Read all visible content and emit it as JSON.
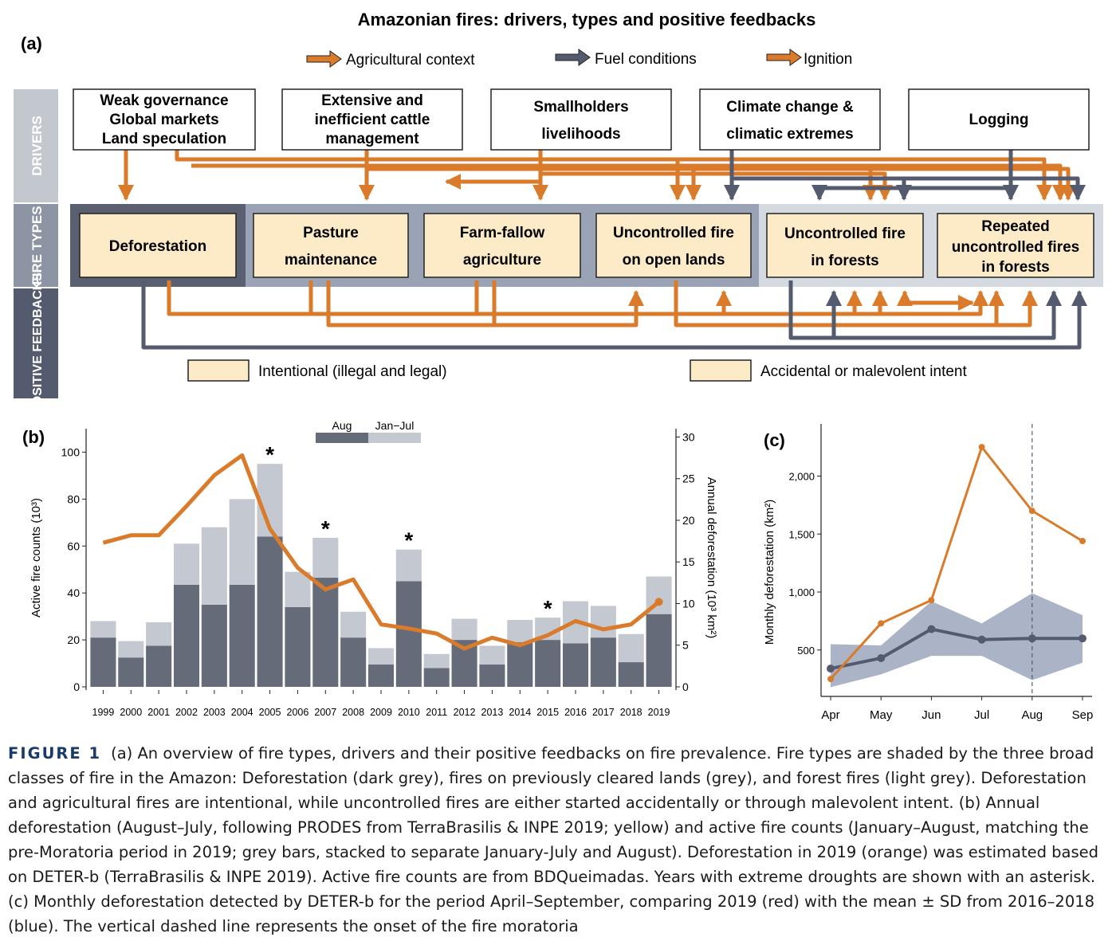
{
  "panel_a": {
    "label": "(a)",
    "title": "Amazonian fires: drivers, types and positive feedbacks",
    "legend": [
      {
        "name": "Agricultural context",
        "color": "#d97b2b"
      },
      {
        "name": "Fuel conditions",
        "color": "#555b6e"
      },
      {
        "name": "Ignition",
        "color": "#d97b2b"
      }
    ],
    "sidebar": [
      "DRIVERS",
      "FIRE TYPES",
      "POSITIVE FEEDBACKS"
    ],
    "drivers": [
      [
        "Weak governance",
        "Global markets",
        "Land speculation"
      ],
      [
        "Extensive and",
        "inefficient cattle",
        "management"
      ],
      [
        "Smallholders",
        "livelihoods"
      ],
      [
        "Climate change &",
        "climatic extremes"
      ],
      [
        "Logging"
      ]
    ],
    "fire_types": [
      [
        "Deforestation"
      ],
      [
        "Pasture",
        "maintenance"
      ],
      [
        "Farm-fallow",
        "agriculture"
      ],
      [
        "Uncontrolled fire",
        "on open lands"
      ],
      [
        "Uncontrolled fire",
        "in forests"
      ],
      [
        "Repeated",
        "uncontrolled fires",
        "in forests"
      ]
    ],
    "intent_legend": [
      "Intentional (illegal and legal)",
      "Accidental or malevolent intent"
    ],
    "colors": {
      "orange": "#d97b2b",
      "slate": "#555b6e",
      "cream": "#fdebc8",
      "dark_band": "#5a6070",
      "mid_band": "#9aa3b5",
      "light_band": "#d5d9e0"
    }
  },
  "chart_data": [
    {
      "type": "bar",
      "label": "(b)",
      "ylabel": "Active fire counts (10³)",
      "y2label": "Annual deforestation (10³ km²)",
      "ylim": [
        0,
        110
      ],
      "y2lim": [
        0,
        31
      ],
      "yticks": [
        0,
        20,
        40,
        60,
        80,
        100
      ],
      "y2ticks": [
        0,
        5,
        10,
        15,
        20,
        25,
        30
      ],
      "categories": [
        "1999",
        "2000",
        "2001",
        "2002",
        "2003",
        "2004",
        "2005",
        "2006",
        "2007",
        "2008",
        "2009",
        "2010",
        "2011",
        "2012",
        "2013",
        "2014",
        "2015",
        "2016",
        "2017",
        "2018",
        "2019"
      ],
      "series": [
        {
          "name": "Aug",
          "color": "#666b7a",
          "values": [
            21,
            12.5,
            17.5,
            43.5,
            35,
            43.5,
            64,
            34,
            46.5,
            21,
            9.5,
            45,
            8,
            20,
            9.5,
            19,
            20,
            18.5,
            21,
            10.5,
            31
          ]
        },
        {
          "name": "Jan−Jul",
          "color": "#c4c8d0",
          "values": [
            7,
            7,
            10,
            17.5,
            33,
            36.5,
            31,
            15,
            17,
            11,
            7,
            13.5,
            6,
            9,
            8,
            9.5,
            9.5,
            18,
            13.5,
            12,
            16
          ]
        },
        {
          "name": "Annual deforestation",
          "color": "#d97b2b",
          "values": [
            17.3,
            18.2,
            18.2,
            21.7,
            25.4,
            27.8,
            19.0,
            14.3,
            11.7,
            12.9,
            7.5,
            7.0,
            6.4,
            4.6,
            5.9,
            5.0,
            6.2,
            7.9,
            6.9,
            7.5,
            10.2
          ]
        }
      ],
      "drought_markers": [
        "2005",
        "2007",
        "2010",
        "2015"
      ],
      "marker_text": "*",
      "legend_position": "top-center"
    },
    {
      "type": "line",
      "label": "(c)",
      "ylabel": "Monthly deforestation (km²)",
      "ylim": [
        100,
        2450
      ],
      "yticks": [
        500,
        1000,
        1500,
        2000
      ],
      "ytick_labels": [
        "500",
        "1,000",
        "1,500",
        "2,000"
      ],
      "categories": [
        "Apr",
        "May",
        "Jun",
        "Jul",
        "Aug",
        "Sep"
      ],
      "series": [
        {
          "name": "2019",
          "color": "#d97b2b",
          "values": [
            250,
            730,
            930,
            2250,
            1700,
            1440
          ]
        },
        {
          "name": "mean 2016–2018",
          "color": "#555b6e",
          "values": [
            340,
            430,
            680,
            590,
            600,
            600
          ],
          "sd_low": [
            180,
            290,
            450,
            450,
            240,
            390
          ],
          "sd_high": [
            550,
            540,
            920,
            730,
            990,
            800
          ]
        }
      ],
      "vline_category": "Aug"
    }
  ],
  "caption": {
    "label": "FIGURE 1",
    "text": "(a) An overview of fire types, drivers and their positive feedbacks on fire prevalence. Fire types are shaded by the three broad classes of fire in the Amazon: Deforestation (dark grey), fires on previously cleared lands (grey), and forest fires (light grey). Deforestation and agricultural fires are intentional, while uncontrolled fires are either started accidentally or through malevolent intent. (b) Annual deforestation (August–July, following PRODES from TerraBrasilis & INPE 2019; yellow) and active fire counts (January–August, matching the pre-Moratoria period in 2019; grey bars, stacked to separate January-July and August). Deforestation in 2019 (orange) was estimated based on DETER-b (TerraBrasilis & INPE 2019). Active fire counts are from BDQueimadas. Years with extreme droughts are shown with an asterisk. (c) Monthly deforestation detected by DETER-b for the period April–September, comparing 2019 (red) with the mean ± SD from 2016–2018 (blue). The vertical dashed line represents the onset of the fire moratoria"
  }
}
